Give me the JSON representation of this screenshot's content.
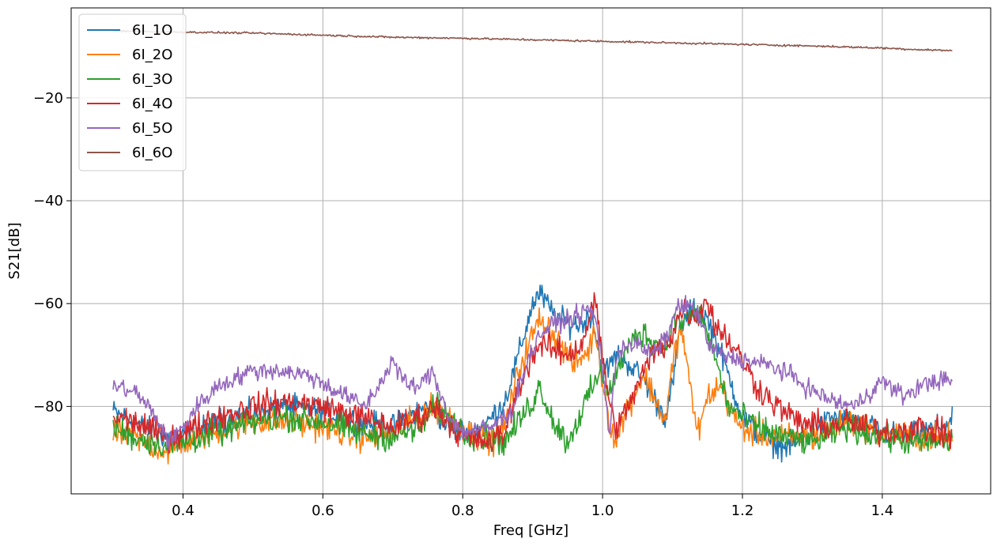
{
  "chart_data": {
    "type": "line",
    "title": "",
    "xlabel": "Freq [GHz]",
    "ylabel": "S21[dB]",
    "xlim": [
      0.24,
      1.555
    ],
    "ylim": [
      -97,
      -2.5
    ],
    "x_ticks": [
      0.4,
      0.6,
      0.8,
      1.0,
      1.2,
      1.4
    ],
    "x_tick_labels": [
      "0.4",
      "0.6",
      "0.8",
      "1.0",
      "1.2",
      "1.4"
    ],
    "y_ticks": [
      -80,
      -60,
      -40,
      -20
    ],
    "y_tick_labels": [
      "−80",
      "−60",
      "−40",
      "−20"
    ],
    "grid": true,
    "legend_position": "upper-left",
    "series": [
      {
        "name": "6I_1O",
        "color": "#1f77b4",
        "noise": 2.0,
        "x": [
          0.3,
          0.33,
          0.36,
          0.38,
          0.4,
          0.45,
          0.5,
          0.55,
          0.6,
          0.65,
          0.7,
          0.72,
          0.75,
          0.76,
          0.78,
          0.8,
          0.83,
          0.86,
          0.88,
          0.9,
          0.91,
          0.93,
          0.95,
          0.97,
          0.985,
          1.0,
          1.02,
          1.04,
          1.06,
          1.08,
          1.09,
          1.1,
          1.11,
          1.13,
          1.14,
          1.15,
          1.17,
          1.19,
          1.2,
          1.22,
          1.24,
          1.26,
          1.28,
          1.3,
          1.33,
          1.36,
          1.4,
          1.43,
          1.46,
          1.5
        ],
        "y": [
          -81,
          -83,
          -85,
          -86,
          -86,
          -83,
          -81,
          -80,
          -81,
          -83,
          -84,
          -82,
          -80,
          -81,
          -84,
          -85,
          -84,
          -79,
          -70,
          -60,
          -58,
          -62,
          -64,
          -64,
          -62,
          -74,
          -70,
          -72,
          -75,
          -80,
          -82,
          -76,
          -65,
          -61,
          -62,
          -63,
          -70,
          -78,
          -82,
          -85,
          -87,
          -88,
          -87,
          -85,
          -82,
          -83,
          -85,
          -86,
          -85,
          -83
        ]
      },
      {
        "name": "6I_2O",
        "color": "#ff7f0e",
        "noise": 2.2,
        "x": [
          0.3,
          0.33,
          0.36,
          0.38,
          0.4,
          0.45,
          0.5,
          0.55,
          0.6,
          0.65,
          0.68,
          0.7,
          0.74,
          0.76,
          0.78,
          0.8,
          0.82,
          0.84,
          0.86,
          0.88,
          0.9,
          0.91,
          0.92,
          0.94,
          0.96,
          0.98,
          0.99,
          1.0,
          1.01,
          1.02,
          1.03,
          1.05,
          1.06,
          1.07,
          1.09,
          1.1,
          1.11,
          1.12,
          1.13,
          1.14,
          1.15,
          1.17,
          1.19,
          1.21,
          1.25,
          1.3,
          1.35,
          1.4,
          1.45,
          1.5
        ],
        "y": [
          -85,
          -86,
          -88,
          -89,
          -87,
          -85,
          -83,
          -83,
          -84,
          -86,
          -86,
          -85,
          -82,
          -80,
          -82,
          -84,
          -86,
          -87,
          -84,
          -73,
          -66,
          -63,
          -64,
          -68,
          -72,
          -69,
          -65,
          -75,
          -83,
          -87,
          -82,
          -76,
          -74,
          -77,
          -83,
          -72,
          -65,
          -70,
          -82,
          -84,
          -78,
          -76,
          -83,
          -85,
          -86,
          -86,
          -83,
          -85,
          -86,
          -86
        ]
      },
      {
        "name": "6I_3O",
        "color": "#2ca02c",
        "noise": 2.2,
        "x": [
          0.3,
          0.33,
          0.36,
          0.38,
          0.4,
          0.45,
          0.5,
          0.55,
          0.6,
          0.65,
          0.7,
          0.74,
          0.76,
          0.78,
          0.8,
          0.83,
          0.86,
          0.88,
          0.9,
          0.91,
          0.93,
          0.95,
          0.97,
          0.99,
          1.0,
          1.01,
          1.03,
          1.05,
          1.06,
          1.07,
          1.08,
          1.09,
          1.1,
          1.12,
          1.14,
          1.16,
          1.18,
          1.2,
          1.22,
          1.26,
          1.3,
          1.35,
          1.4,
          1.45,
          1.5
        ],
        "y": [
          -84,
          -86,
          -87,
          -88,
          -87,
          -85,
          -83,
          -82,
          -83,
          -85,
          -86,
          -84,
          -80,
          -82,
          -85,
          -86,
          -87,
          -83,
          -79,
          -76,
          -83,
          -87,
          -81,
          -75,
          -74,
          -77,
          -70,
          -66,
          -66,
          -67,
          -68,
          -68,
          -64,
          -63,
          -62,
          -70,
          -80,
          -82,
          -84,
          -86,
          -87,
          -84,
          -86,
          -87,
          -87
        ]
      },
      {
        "name": "6I_4O",
        "color": "#d62728",
        "noise": 2.2,
        "x": [
          0.3,
          0.33,
          0.36,
          0.38,
          0.4,
          0.45,
          0.5,
          0.55,
          0.6,
          0.65,
          0.7,
          0.74,
          0.76,
          0.78,
          0.8,
          0.84,
          0.86,
          0.88,
          0.9,
          0.91,
          0.93,
          0.95,
          0.97,
          0.985,
          0.99,
          1.0,
          1.01,
          1.02,
          1.03,
          1.05,
          1.07,
          1.09,
          1.1,
          1.11,
          1.12,
          1.13,
          1.15,
          1.16,
          1.18,
          1.2,
          1.22,
          1.25,
          1.28,
          1.32,
          1.35,
          1.4,
          1.45,
          1.5
        ],
        "y": [
          -82,
          -83,
          -85,
          -86,
          -85,
          -82,
          -80,
          -79,
          -80,
          -82,
          -84,
          -82,
          -80,
          -83,
          -86,
          -87,
          -85,
          -76,
          -70,
          -68,
          -69,
          -70,
          -68,
          -61,
          -60,
          -70,
          -80,
          -84,
          -82,
          -76,
          -70,
          -68,
          -66,
          -62,
          -61,
          -63,
          -59,
          -64,
          -67,
          -71,
          -76,
          -80,
          -83,
          -84,
          -83,
          -85,
          -84,
          -86
        ]
      },
      {
        "name": "6I_5O",
        "color": "#9467bd",
        "noise": 1.5,
        "x": [
          0.3,
          0.33,
          0.35,
          0.37,
          0.38,
          0.4,
          0.42,
          0.45,
          0.5,
          0.54,
          0.58,
          0.62,
          0.66,
          0.68,
          0.7,
          0.72,
          0.74,
          0.755,
          0.77,
          0.78,
          0.8,
          0.84,
          0.87,
          0.89,
          0.91,
          0.93,
          0.95,
          0.97,
          0.98,
          0.99,
          1.0,
          1.01,
          1.02,
          1.03,
          1.05,
          1.07,
          1.09,
          1.11,
          1.13,
          1.14,
          1.15,
          1.17,
          1.2,
          1.24,
          1.27,
          1.3,
          1.33,
          1.36,
          1.4,
          1.43,
          1.47,
          1.5
        ],
        "y": [
          -76,
          -77,
          -80,
          -84,
          -87,
          -84,
          -80,
          -76,
          -73,
          -73,
          -74,
          -77,
          -80,
          -76,
          -71,
          -76,
          -76,
          -73,
          -78,
          -82,
          -85,
          -84,
          -81,
          -72,
          -66,
          -64,
          -63,
          -62,
          -61,
          -63,
          -72,
          -86,
          -70,
          -68,
          -68,
          -70,
          -67,
          -60,
          -61,
          -63,
          -68,
          -70,
          -71,
          -72,
          -74,
          -77,
          -79,
          -80,
          -75,
          -78,
          -75,
          -75
        ]
      },
      {
        "name": "6I_6O",
        "color": "#8c564b",
        "noise": 0.15,
        "x": [
          0.3,
          0.4,
          0.5,
          0.6,
          0.7,
          0.8,
          0.9,
          1.0,
          1.1,
          1.2,
          1.3,
          1.4,
          1.45,
          1.5
        ],
        "y": [
          -7.0,
          -7.2,
          -7.4,
          -7.8,
          -8.2,
          -8.4,
          -8.7,
          -9.0,
          -9.3,
          -9.6,
          -9.9,
          -10.3,
          -10.6,
          -10.8
        ]
      }
    ]
  }
}
